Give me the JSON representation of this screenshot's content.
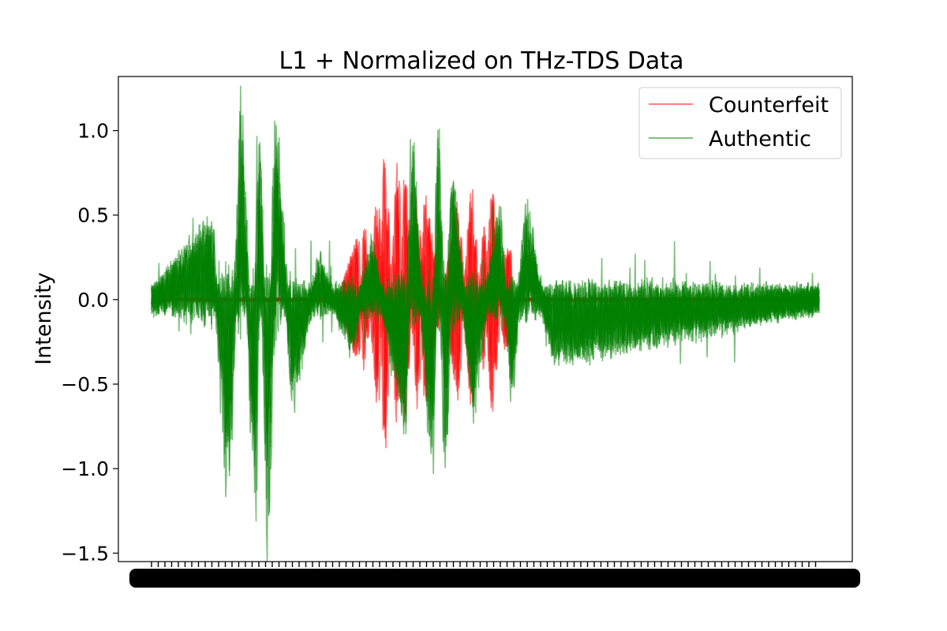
{
  "chart_data": {
    "type": "line",
    "title": "L1 + Normalized on THz-TDS  Data",
    "xlabel": "",
    "ylabel": "Intensity",
    "ylim": [
      -1.55,
      1.32
    ],
    "yticks": [
      {
        "value": 1.0,
        "label": "1.0"
      },
      {
        "value": 0.5,
        "label": "0.5"
      },
      {
        "value": 0.0,
        "label": "0.0"
      },
      {
        "value": -0.5,
        "label": "−0.5"
      },
      {
        "value": -1.0,
        "label": "−1.0"
      },
      {
        "value": -1.5,
        "label": "−1.5"
      }
    ],
    "x_tick_labels_note": "dense overlapping numeric tick labels rendered as an unreadable black band",
    "grid": false,
    "legend_position": "top-right",
    "series": [
      {
        "name": "Counterfeit",
        "color": "#ff0000",
        "alpha": 0.5
      },
      {
        "name": "Authentic",
        "color": "#008000",
        "alpha": 0.5
      }
    ],
    "envelope": {
      "description": "approximate peak values of the overlaid time-domain traces (x is sample fraction 0-1 across the signal)",
      "authentic_peaks": [
        [
          0.0,
          0.0
        ],
        [
          0.09,
          0.42
        ],
        [
          0.115,
          -1.1
        ],
        [
          0.135,
          1.08
        ],
        [
          0.155,
          -1.3
        ],
        [
          0.16,
          1.18
        ],
        [
          0.175,
          -1.4
        ],
        [
          0.185,
          1.12
        ],
        [
          0.21,
          -0.55
        ],
        [
          0.25,
          0.2
        ],
        [
          0.3,
          -0.25
        ],
        [
          0.33,
          0.3
        ],
        [
          0.38,
          -0.7
        ],
        [
          0.39,
          0.85
        ],
        [
          0.42,
          -0.95
        ],
        [
          0.43,
          0.95
        ],
        [
          0.44,
          -1.05
        ],
        [
          0.45,
          0.75
        ],
        [
          0.48,
          -0.6
        ],
        [
          0.52,
          0.5
        ],
        [
          0.54,
          -0.5
        ],
        [
          0.56,
          0.5
        ],
        [
          0.6,
          -0.3
        ],
        [
          1.0,
          0.0
        ]
      ],
      "counterfeit_peaks": [
        [
          0.28,
          0.0
        ],
        [
          0.31,
          0.4
        ],
        [
          0.32,
          -0.45
        ],
        [
          0.34,
          0.7
        ],
        [
          0.35,
          -0.95
        ],
        [
          0.37,
          0.92
        ],
        [
          0.38,
          -0.8
        ],
        [
          0.4,
          0.7
        ],
        [
          0.41,
          -0.65
        ],
        [
          0.46,
          0.6
        ],
        [
          0.48,
          -0.7
        ],
        [
          0.5,
          0.5
        ],
        [
          0.51,
          -0.75
        ],
        [
          0.53,
          0.3
        ]
      ]
    }
  }
}
